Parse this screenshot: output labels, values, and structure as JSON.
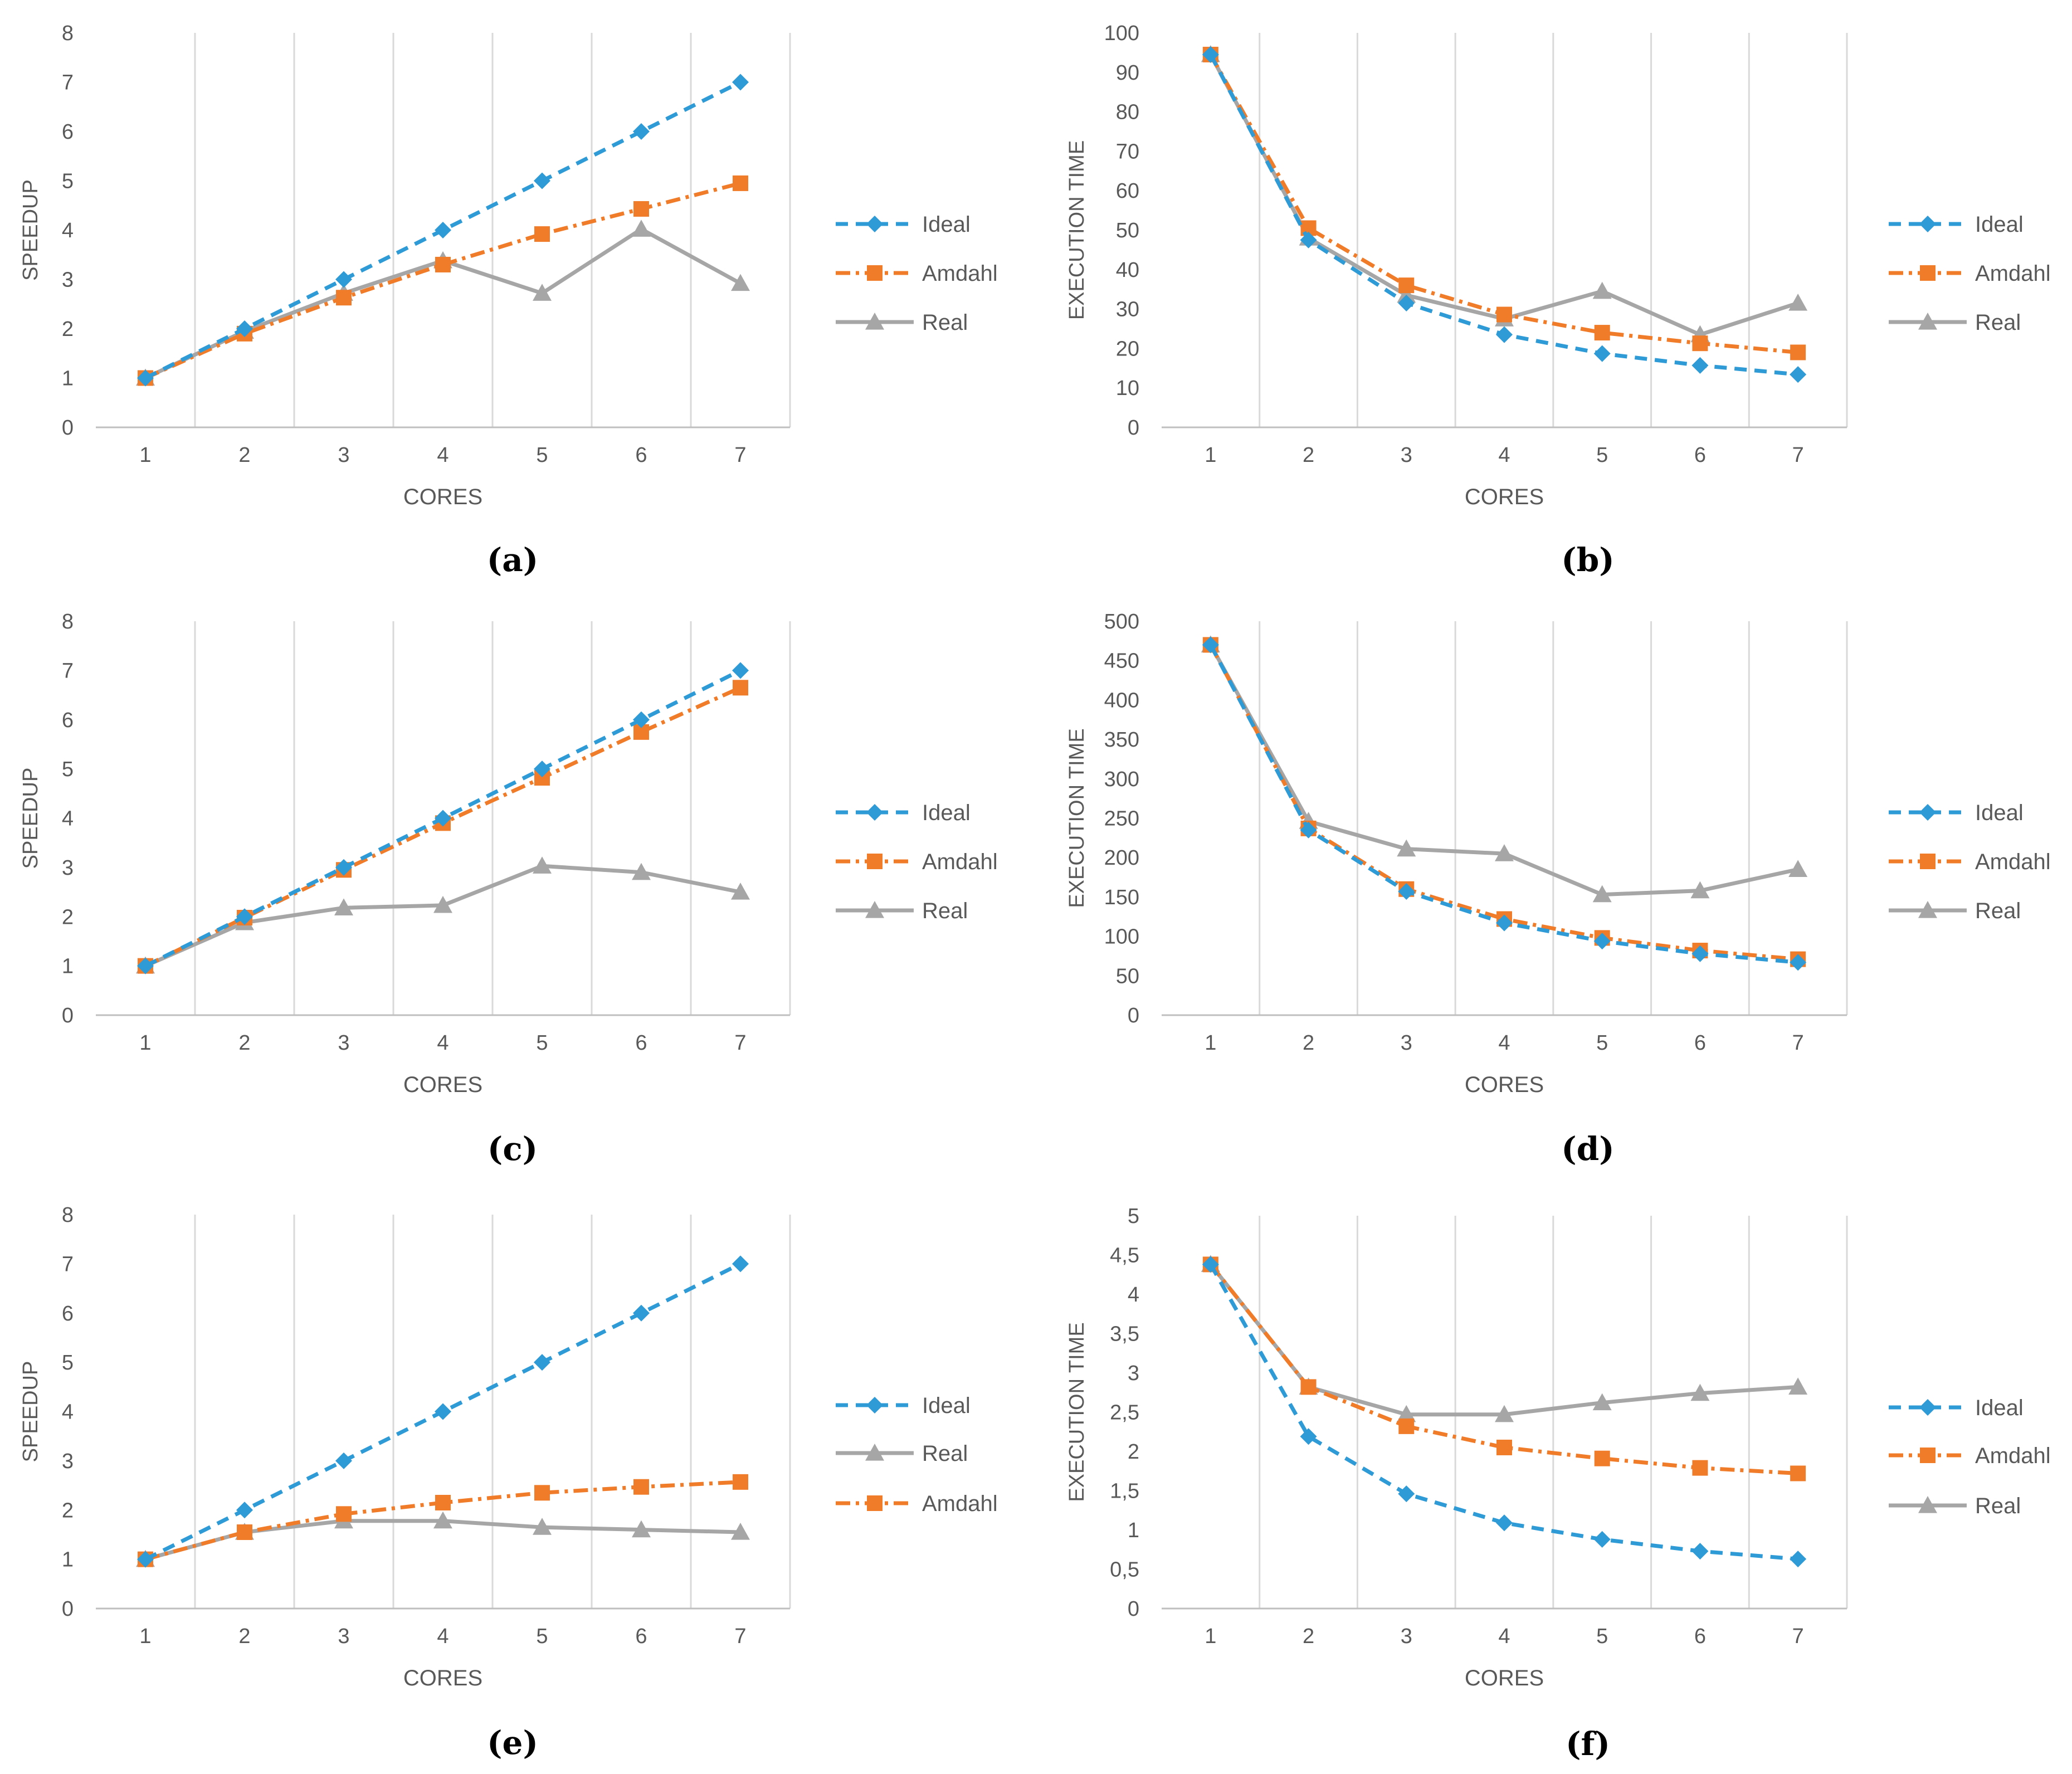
{
  "panels": [
    {
      "id": "a",
      "caption": "(a)",
      "type": "line",
      "xlabel": "CORES",
      "ylabel": "SPEEDUP",
      "x": [
        1,
        2,
        3,
        4,
        5,
        6,
        7
      ],
      "ylim": [
        0,
        8
      ],
      "ytick_step": 1,
      "ytick_labels": [
        "0",
        "1",
        "2",
        "3",
        "4",
        "5",
        "6",
        "7",
        "8"
      ],
      "grid": "vertical",
      "legend": "right",
      "series": [
        {
          "name": "Ideal",
          "style": "ideal",
          "values": [
            1,
            2,
            3,
            4,
            5,
            6,
            7
          ]
        },
        {
          "name": "Amdahl",
          "style": "amdahl",
          "values": [
            1,
            1.9,
            2.63,
            3.3,
            3.92,
            4.43,
            4.95
          ]
        },
        {
          "name": "Real",
          "style": "real",
          "values": [
            1,
            1.95,
            2.72,
            3.38,
            2.72,
            4.02,
            2.92
          ]
        }
      ]
    },
    {
      "id": "b",
      "caption": "(b)",
      "type": "line",
      "xlabel": "CORES",
      "ylabel": "EXECUTION TIME",
      "x": [
        1,
        2,
        3,
        4,
        5,
        6,
        7
      ],
      "ylim": [
        0,
        100
      ],
      "ytick_step": 10,
      "ytick_labels": [
        "0",
        "10",
        "20",
        "30",
        "40",
        "50",
        "60",
        "70",
        "80",
        "90",
        "100"
      ],
      "grid": "vertical",
      "legend": "right",
      "series": [
        {
          "name": "Ideal",
          "style": "ideal",
          "values": [
            94.5,
            47.5,
            31.5,
            23.5,
            18.7,
            15.7,
            13.4
          ]
        },
        {
          "name": "Amdahl",
          "style": "amdahl",
          "values": [
            94.5,
            50.5,
            36,
            28.6,
            24,
            21.3,
            19
          ]
        },
        {
          "name": "Real",
          "style": "real",
          "values": [
            94.5,
            48,
            33.5,
            27.5,
            34.5,
            23.5,
            31.5
          ]
        }
      ]
    },
    {
      "id": "c",
      "caption": "(c)",
      "type": "line",
      "xlabel": "CORES",
      "ylabel": "SPEEDUP",
      "x": [
        1,
        2,
        3,
        4,
        5,
        6,
        7
      ],
      "ylim": [
        0,
        8
      ],
      "ytick_step": 1,
      "ytick_labels": [
        "0",
        "1",
        "2",
        "3",
        "4",
        "5",
        "6",
        "7",
        "8"
      ],
      "grid": "vertical",
      "legend": "right",
      "series": [
        {
          "name": "Ideal",
          "style": "ideal",
          "values": [
            1,
            2,
            3,
            4,
            5,
            6,
            7
          ]
        },
        {
          "name": "Amdahl",
          "style": "amdahl",
          "values": [
            1,
            1.98,
            2.95,
            3.9,
            4.82,
            5.75,
            6.65
          ]
        },
        {
          "name": "Real",
          "style": "real",
          "values": [
            1,
            1.88,
            2.18,
            2.23,
            3.03,
            2.9,
            2.5
          ]
        }
      ]
    },
    {
      "id": "d",
      "caption": "(d)",
      "type": "line",
      "xlabel": "CORES",
      "ylabel": "EXECUTION TIME",
      "x": [
        1,
        2,
        3,
        4,
        5,
        6,
        7
      ],
      "ylim": [
        0,
        500
      ],
      "ytick_step": 50,
      "ytick_labels": [
        "0",
        "50",
        "100",
        "150",
        "200",
        "250",
        "300",
        "350",
        "400",
        "450",
        "500"
      ],
      "grid": "vertical",
      "legend": "right",
      "series": [
        {
          "name": "Ideal",
          "style": "ideal",
          "values": [
            470,
            235,
            157,
            117,
            94,
            78,
            67
          ]
        },
        {
          "name": "Amdahl",
          "style": "amdahl",
          "values": [
            470,
            237,
            160,
            122,
            98,
            82,
            71
          ]
        },
        {
          "name": "Real",
          "style": "real",
          "values": [
            470,
            246,
            211,
            205,
            153,
            158,
            185
          ]
        }
      ]
    },
    {
      "id": "e",
      "caption": "(e)",
      "type": "line",
      "xlabel": "CORES",
      "ylabel": "SPEEDUP",
      "x": [
        1,
        2,
        3,
        4,
        5,
        6,
        7
      ],
      "ylim": [
        0,
        8
      ],
      "ytick_step": 1,
      "ytick_labels": [
        "0",
        "1",
        "2",
        "3",
        "4",
        "5",
        "6",
        "7",
        "8"
      ],
      "grid": "vertical",
      "legend": "right",
      "series": [
        {
          "name": "Ideal",
          "style": "ideal",
          "values": [
            1,
            2,
            3,
            4,
            5,
            6,
            7
          ]
        },
        {
          "name": "Real",
          "style": "real",
          "values": [
            1,
            1.55,
            1.78,
            1.78,
            1.65,
            1.6,
            1.55
          ]
        },
        {
          "name": "Amdahl",
          "style": "amdahl",
          "values": [
            1,
            1.55,
            1.92,
            2.15,
            2.35,
            2.47,
            2.57
          ]
        }
      ]
    },
    {
      "id": "f",
      "caption": "(f)",
      "type": "line",
      "xlabel": "CORES",
      "ylabel": "EXECUTION TIME",
      "x": [
        1,
        2,
        3,
        4,
        5,
        6,
        7
      ],
      "ylim": [
        0,
        5
      ],
      "ytick_step": 0.5,
      "ytick_labels": [
        "0",
        "0,5",
        "1",
        "1,5",
        "2",
        "2,5",
        "3",
        "3,5",
        "4",
        "4,5",
        "5"
      ],
      "grid": "vertical",
      "legend": "right",
      "series": [
        {
          "name": "Ideal",
          "style": "ideal",
          "values": [
            4.38,
            2.19,
            1.46,
            1.09,
            0.88,
            0.73,
            0.63
          ]
        },
        {
          "name": "Amdahl",
          "style": "amdahl",
          "values": [
            4.38,
            2.82,
            2.32,
            2.05,
            1.91,
            1.79,
            1.72
          ]
        },
        {
          "name": "Real",
          "style": "real",
          "values": [
            4.38,
            2.82,
            2.47,
            2.47,
            2.62,
            2.74,
            2.82
          ]
        }
      ]
    }
  ],
  "series_styles": {
    "ideal": {
      "color": "#2E9AD6",
      "dash": "22,14",
      "marker": "diamond"
    },
    "amdahl": {
      "color": "#F07C2A",
      "dash": "26,10,6,10",
      "marker": "square"
    },
    "real": {
      "color": "#A6A6A6",
      "dash": "",
      "marker": "triangle"
    }
  },
  "colors": {
    "grid": "#D9D9D9",
    "axis": "#BFBFBF",
    "text": "#595959"
  }
}
